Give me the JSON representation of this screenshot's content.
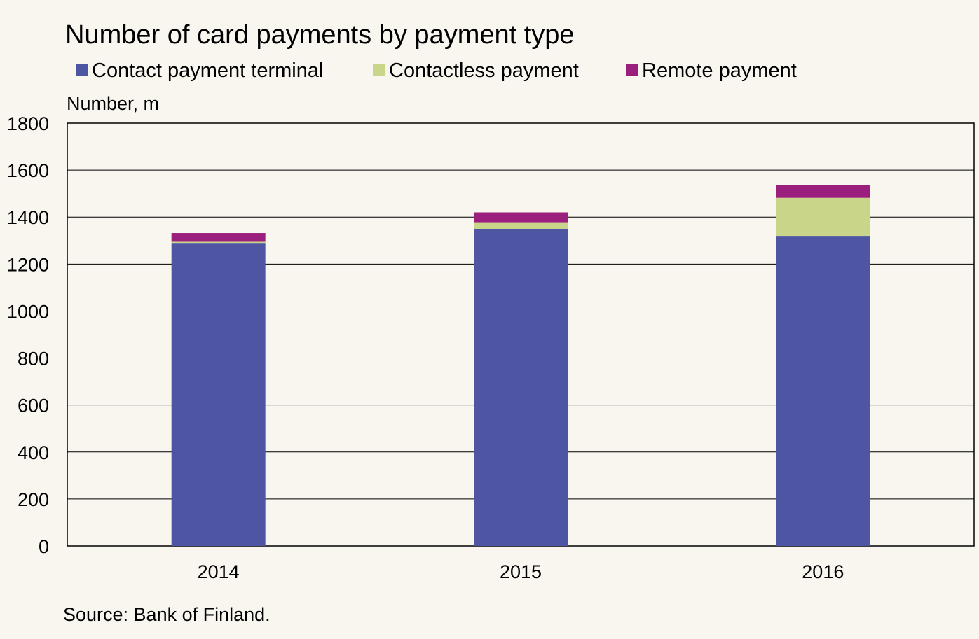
{
  "chart_data": {
    "type": "bar",
    "stacked": true,
    "title": "Number of card payments by payment type",
    "ylabel": "Number, m",
    "xlabel": "",
    "categories": [
      "2014",
      "2015",
      "2016"
    ],
    "series": [
      {
        "name": "Contact payment terminal",
        "color": "#4e56a3",
        "values": [
          1290,
          1350,
          1320
        ]
      },
      {
        "name": "Contactless payment",
        "color": "#c9d68a",
        "values": [
          5,
          28,
          162
        ]
      },
      {
        "name": "Remote payment",
        "color": "#9b1f7d",
        "values": [
          37,
          42,
          55
        ]
      }
    ],
    "ylim": [
      0,
      1800
    ],
    "yticks": [
      "0",
      "200",
      "400",
      "600",
      "800",
      "1000",
      "1200",
      "1400",
      "1600",
      "1800"
    ],
    "grid": true,
    "legend_position": "top"
  },
  "source": "Source: Bank of Finland."
}
